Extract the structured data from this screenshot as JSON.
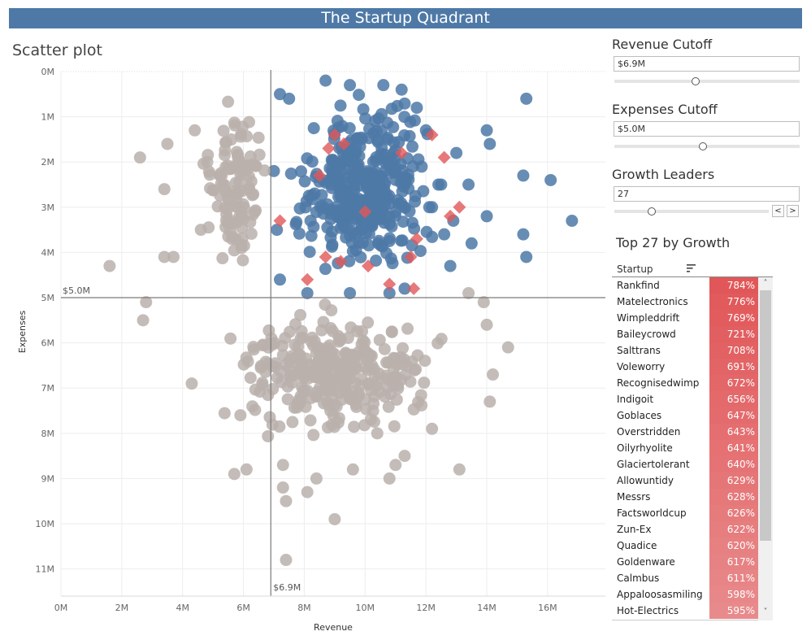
{
  "dashboard": {
    "title": "The Startup Quadrant",
    "sheet_title": "Scatter plot"
  },
  "controls": {
    "revenue": {
      "label": "Revenue Cutoff",
      "value": "$6.9M",
      "level": 0.44
    },
    "expenses": {
      "label": "Expenses Cutoff",
      "value": "$5.0M",
      "level": 0.48
    },
    "growth": {
      "label": "Growth Leaders",
      "value": "27",
      "level": 0.24,
      "prev": "<",
      "next": ">"
    }
  },
  "table": {
    "title": "Top 27 by Growth",
    "column": "Startup",
    "sort_icon": "sort-descending-icon",
    "scroll_up": "˄",
    "scroll_down": "˅",
    "rows": [
      {
        "name": "Rankfind",
        "value": "784%"
      },
      {
        "name": "Matelectronics",
        "value": "776%"
      },
      {
        "name": "Wimpleddrift",
        "value": "769%"
      },
      {
        "name": "Baileycrowd",
        "value": "721%"
      },
      {
        "name": "Salttrans",
        "value": "708%"
      },
      {
        "name": "Voleworry",
        "value": "691%"
      },
      {
        "name": "Recognisedwimp",
        "value": "672%"
      },
      {
        "name": "Indigoit",
        "value": "656%"
      },
      {
        "name": "Goblaces",
        "value": "647%"
      },
      {
        "name": "Overstridden",
        "value": "643%"
      },
      {
        "name": "Oilyrhyolite",
        "value": "641%"
      },
      {
        "name": "Glaciertolerant",
        "value": "640%"
      },
      {
        "name": "Allowuntidy",
        "value": "629%"
      },
      {
        "name": "Messrs",
        "value": "628%"
      },
      {
        "name": "Factsworldcup",
        "value": "626%"
      },
      {
        "name": "Zun-Ex",
        "value": "622%"
      },
      {
        "name": "Quadice",
        "value": "620%"
      },
      {
        "name": "Goldenware",
        "value": "617%"
      },
      {
        "name": "Calmbus",
        "value": "611%"
      },
      {
        "name": "Appaloosasmiling",
        "value": "598%"
      },
      {
        "name": "Hot-Electrics",
        "value": "595%"
      }
    ]
  },
  "colors": {
    "header": "#4e79a7",
    "above": "#4e79a7",
    "below": "#bab0ac",
    "leader": "#e15759",
    "table_low": "#e88a8b",
    "table_high": "#e15759"
  },
  "chart_data": {
    "type": "scatter",
    "xlabel": "Revenue",
    "ylabel": "Expenses",
    "x_ticks": [
      "0M",
      "2M",
      "4M",
      "6M",
      "8M",
      "10M",
      "12M",
      "14M",
      "16M"
    ],
    "y_ticks": [
      "0M",
      "1M",
      "2M",
      "3M",
      "4M",
      "5M",
      "6M",
      "7M",
      "8M",
      "9M",
      "10M",
      "11M"
    ],
    "xlim": [
      0,
      17.9
    ],
    "ylim": [
      0,
      11.6
    ],
    "y_reversed": true,
    "reference_lines": {
      "x": 6.9,
      "x_label": "$6.9M",
      "y": 5.0,
      "y_label": "$5.0M"
    },
    "series": [
      {
        "color": "#4e79a7",
        "points": [
          [
            15.3,
            0.6
          ],
          [
            16.1,
            2.4
          ],
          [
            16.8,
            3.3
          ],
          [
            15.3,
            4.1
          ],
          [
            15.2,
            3.6
          ],
          [
            15.2,
            2.3
          ],
          [
            14,
            1.3
          ],
          [
            14,
            3.2
          ],
          [
            14.1,
            1.6
          ],
          [
            13.4,
            2.5
          ],
          [
            13.5,
            3.8
          ],
          [
            12.8,
            4.3
          ],
          [
            9.5,
            0.3
          ],
          [
            8.7,
            0.2
          ],
          [
            10.6,
            0.3
          ],
          [
            11.2,
            0.4
          ],
          [
            7.2,
            0.5
          ],
          [
            7.5,
            0.6
          ],
          [
            12,
            1.3
          ],
          [
            11.7,
            0.8
          ],
          [
            13,
            1.8
          ],
          [
            12.5,
            2.5
          ],
          [
            12.2,
            3
          ],
          [
            12.6,
            3.6
          ],
          [
            12.9,
            3.3
          ],
          [
            11.3,
            4.8
          ],
          [
            10.8,
            4.9
          ],
          [
            9.5,
            4.9
          ],
          [
            8.1,
            4.9
          ],
          [
            7.2,
            4.6
          ],
          [
            7.1,
            3.5
          ],
          [
            7,
            2.2
          ]
        ],
        "cluster": {
          "x_range": [
            7.2,
            12.7
          ],
          "y_range": [
            0.4,
            4.8
          ],
          "count": 360
        }
      },
      {
        "color": "#bab0ac",
        "points": [
          [
            1.6,
            4.3
          ],
          [
            2.6,
            1.9
          ],
          [
            3.5,
            1.6
          ],
          [
            3.4,
            2.6
          ],
          [
            2.7,
            5.5
          ],
          [
            2.8,
            5.1
          ],
          [
            3.4,
            4.1
          ],
          [
            3.7,
            4.1
          ],
          [
            4.3,
            6.9
          ],
          [
            4.4,
            1.3
          ],
          [
            4.6,
            3.5
          ],
          [
            6.1,
            8.8
          ],
          [
            5.7,
            8.9
          ],
          [
            5.9,
            7.6
          ],
          [
            7.3,
            8.7
          ],
          [
            7.3,
            9.2
          ],
          [
            7.4,
            9.5
          ],
          [
            8.1,
            9.3
          ],
          [
            9,
            9.9
          ],
          [
            7.4,
            10.8
          ],
          [
            10.8,
            9
          ],
          [
            11,
            8.7
          ],
          [
            13.1,
            8.8
          ],
          [
            14.1,
            7.3
          ],
          [
            14.2,
            6.7
          ],
          [
            14.7,
            6.1
          ],
          [
            14,
            5.6
          ],
          [
            13.9,
            5.1
          ],
          [
            13.4,
            4.9
          ],
          [
            12.2,
            7.9
          ],
          [
            11.3,
            8.5
          ],
          [
            10.4,
            8
          ],
          [
            9.6,
            8.8
          ],
          [
            8.4,
            9
          ]
        ],
        "cluster": {
          "x_range": [
            4.7,
            13.2
          ],
          "y_range": [
            4.9,
            8.3
          ],
          "count": 300
        },
        "cluster_left": {
          "x_range": [
            4.5,
            6.9
          ],
          "y_range": [
            0.3,
            5.0
          ],
          "count": 110
        }
      },
      {
        "color": "#e15759",
        "marker": "diamond",
        "points": [
          [
            9,
            1.4
          ],
          [
            8.8,
            1.7
          ],
          [
            9.3,
            1.6
          ],
          [
            11.2,
            1.8
          ],
          [
            12.2,
            1.4
          ],
          [
            12.6,
            1.9
          ],
          [
            8.5,
            2.3
          ],
          [
            10,
            3.1
          ],
          [
            12.8,
            3.2
          ],
          [
            13.1,
            3
          ],
          [
            7.2,
            3.3
          ],
          [
            11.7,
            3.7
          ],
          [
            11.5,
            4.1
          ],
          [
            8.7,
            4.1
          ],
          [
            9.2,
            4.2
          ],
          [
            10.1,
            4.3
          ],
          [
            8.1,
            4.6
          ],
          [
            10.8,
            4.7
          ],
          [
            11.6,
            4.8
          ]
        ]
      }
    ]
  }
}
